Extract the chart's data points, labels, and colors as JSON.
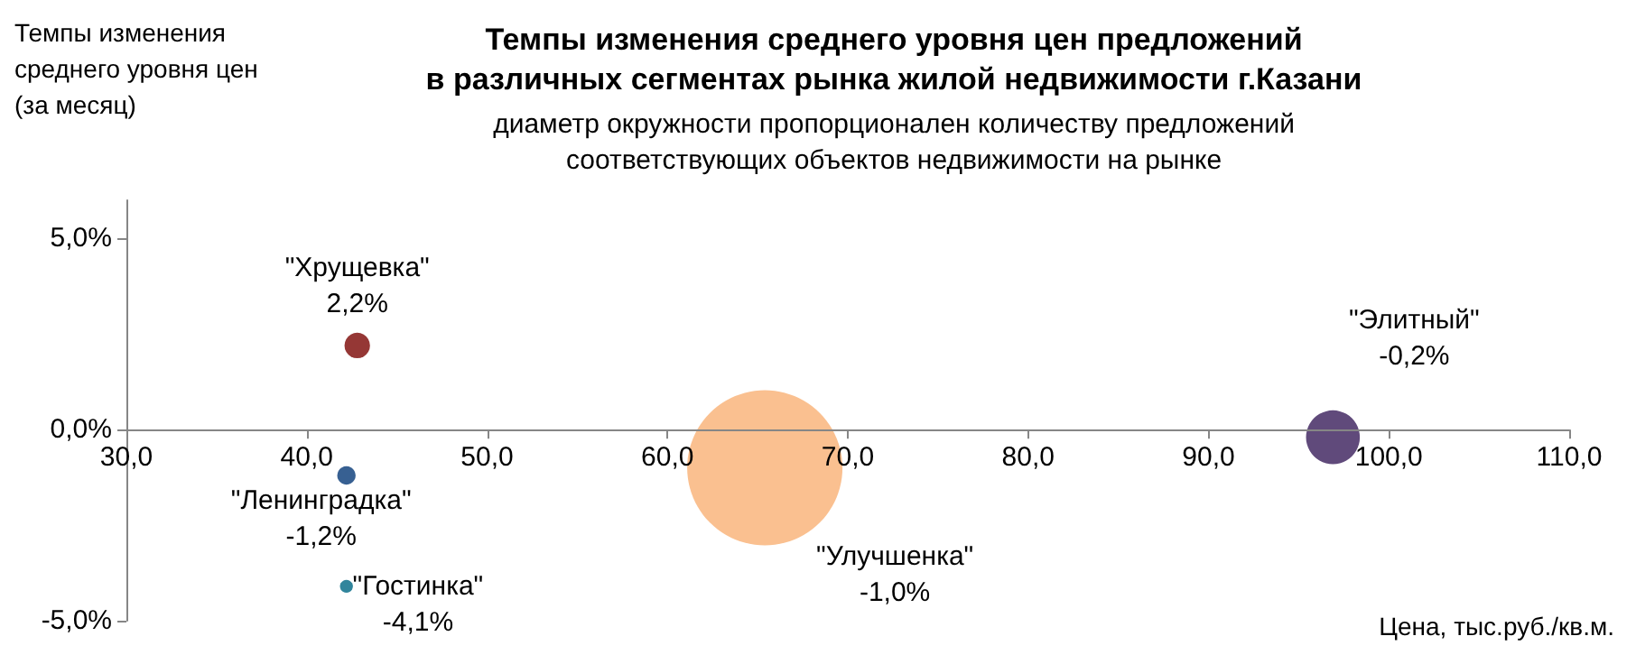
{
  "chart_data": {
    "type": "bubble",
    "title": "Темпы изменения среднего уровня цен предложений\nв различных сегментах рынка жилой недвижимости г.Казани",
    "subtitle": "диаметр окружности пропорционален количеству предложений\nсоответствующих объектов недвижимости на рынке",
    "ylabel": "Темпы изменения\nсреднего уровня цен\n(за месяц)",
    "xlabel": "Цена, тыс.руб./кв.м.",
    "series": [
      {
        "name": "\"Хрущевка\"",
        "color": "#953735",
        "x": [
          42.8
        ],
        "values": [
          2.2
        ],
        "sizes": [
          0.027
        ],
        "value_labels": [
          "2,2%"
        ]
      },
      {
        "name": "\"Ленинградка\"",
        "color": "#376092",
        "x": [
          42.2
        ],
        "values": [
          -1.2
        ],
        "sizes": [
          0.014
        ],
        "value_labels": [
          "-1,2%"
        ]
      },
      {
        "name": "\"Гостинка\"",
        "color": "#31859c",
        "x": [
          42.2
        ],
        "values": [
          -4.1
        ],
        "sizes": [
          0.007
        ],
        "value_labels": [
          "-4,1%"
        ]
      },
      {
        "name": "\"Улучшенка\"",
        "color": "#fac090",
        "x": [
          65.4
        ],
        "values": [
          -1.0
        ],
        "sizes": [
          1
        ],
        "value_labels": [
          "-1,0%"
        ]
      },
      {
        "name": "\"Элитный\"",
        "color": "#604a7b",
        "x": [
          96.9
        ],
        "values": [
          -0.2
        ],
        "sizes": [
          0.12
        ],
        "value_labels": [
          "-0,2%"
        ]
      }
    ],
    "xlim": [
      30,
      110
    ],
    "xticks": [
      {
        "value": 30,
        "label": "30,0"
      },
      {
        "value": 40,
        "label": "40,0"
      },
      {
        "value": 50,
        "label": "50,0"
      },
      {
        "value": 60,
        "label": "60,0"
      },
      {
        "value": 70,
        "label": "70,0"
      },
      {
        "value": 80,
        "label": "80,0"
      },
      {
        "value": 90,
        "label": "90,0"
      },
      {
        "value": 100,
        "label": "100,0"
      },
      {
        "value": 110,
        "label": "110,0"
      }
    ],
    "ylim": [
      -5,
      6
    ],
    "yticks": [
      {
        "value": -5,
        "label": "-5,0%"
      },
      {
        "value": 0,
        "label": "0,0%"
      },
      {
        "value": 5,
        "label": "5,0%"
      }
    ],
    "legend": false,
    "marker": "circle"
  }
}
